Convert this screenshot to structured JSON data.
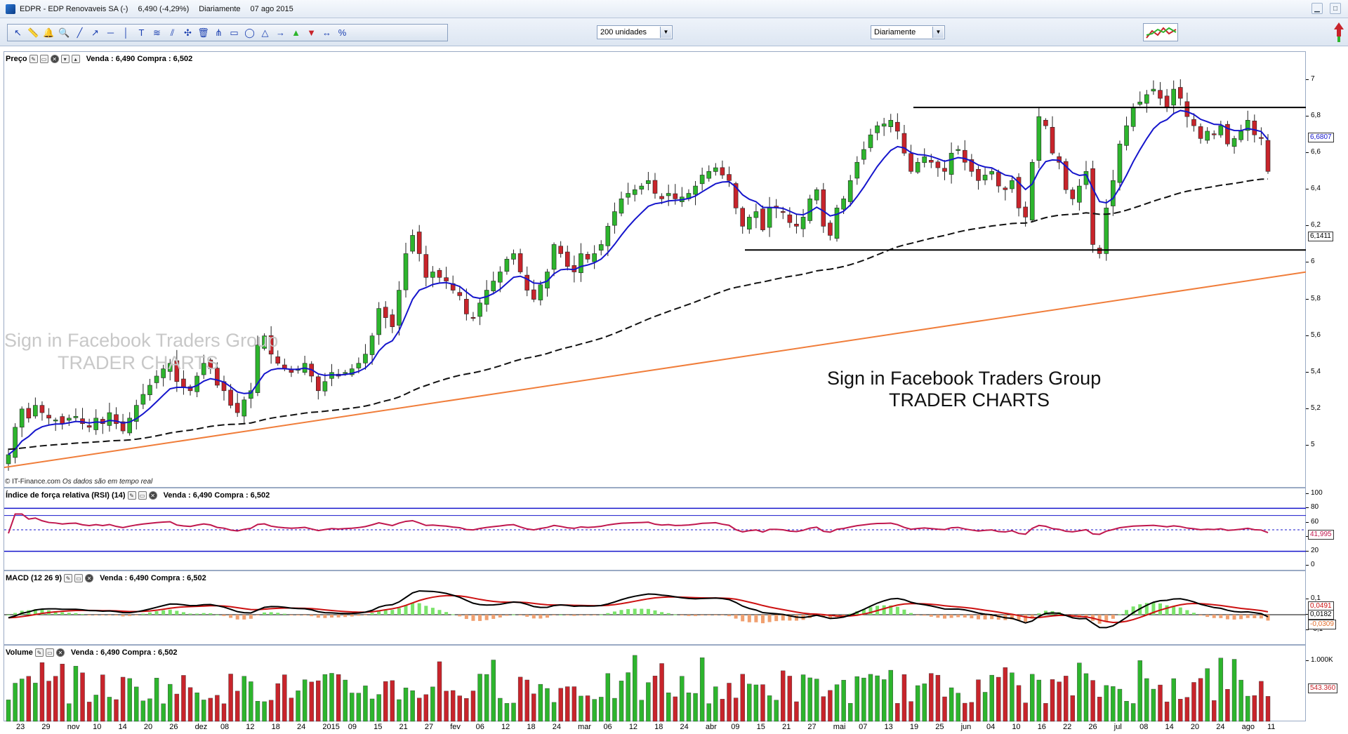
{
  "window": {
    "title_symbol": "EDPR - EDP Renovaveis SA (-)",
    "title_quote": "6,490 (-4,29%)",
    "title_period": "Diariamente",
    "title_date": "07 ago 2015"
  },
  "toolbar": {
    "units_select": "200 unidades",
    "period_select": "Diariamente",
    "tool_icons": [
      "cursor-icon",
      "ruler-icon",
      "bell-icon",
      "zoom-icon",
      "trendline-icon",
      "ray-icon",
      "horizontal-line-icon",
      "vertical-line-icon",
      "text-icon",
      "fib-icon",
      "channel-icon",
      "magnet-icon",
      "trash-icon",
      "pitchfork-icon",
      "rectangle-icon",
      "ellipse-icon",
      "triangle-icon",
      "arrow-icon",
      "up-arrow-icon",
      "down-arrow-icon",
      "range-icon",
      "percent-icon"
    ]
  },
  "panes": {
    "price": {
      "name": "Preço",
      "quote": "Venda : 6,490 Compra : 6,502"
    },
    "rsi": {
      "name": "Índice de força relativa (RSI) (14)",
      "quote": "Venda : 6,490 Compra : 6,502"
    },
    "macd": {
      "name": "MACD (12 26 9)",
      "quote": "Venda : 6,490 Compra : 6,502"
    },
    "volume": {
      "name": "Volume",
      "quote": "Venda : 6,490 Compra : 6,502"
    }
  },
  "credit": {
    "source": "© IT-Finance.com",
    "note": "Os dados são em tempo real"
  },
  "watermark": {
    "line1": "Sign in Facebook Traders Group",
    "line2": "TRADER CHARTS"
  },
  "colors": {
    "up": "#2db52d",
    "down": "#c8242b",
    "ema": "#1515cc",
    "sma": "#111111",
    "trend": "#f07d3a",
    "rsi": "#c0174e",
    "macd_signal": "#cc1111",
    "macd_line": "#000000"
  },
  "chart_data": [
    {
      "type": "candlestick",
      "symbol": "EDPR",
      "period": "daily",
      "ylim": [
        4.85,
        7.1
      ],
      "yticks": [
        "5",
        "5,2",
        "5,4",
        "5,6",
        "5,8",
        "6",
        "6,2",
        "6,4",
        "6,6",
        "6,8",
        "7"
      ],
      "last_ema_label": "6,6807",
      "last_sma_label": "6,1411",
      "x_ticks": [
        "23",
        "29",
        "nov",
        "10",
        "14",
        "20",
        "26",
        "dez",
        "08",
        "12",
        "18",
        "24",
        "2015",
        "09",
        "15",
        "21",
        "27",
        "fev",
        "06",
        "12",
        "18",
        "24",
        "mar",
        "06",
        "12",
        "18",
        "24",
        "abr",
        "09",
        "15",
        "21",
        "27",
        "mai",
        "07",
        "13",
        "19",
        "25",
        "jun",
        "04",
        "10",
        "16",
        "22",
        "26",
        "jul",
        "08",
        "14",
        "20",
        "24",
        "ago",
        "11"
      ],
      "closes": [
        4.95,
        5.1,
        5.2,
        5.15,
        5.22,
        5.18,
        5.15,
        5.14,
        5.12,
        5.15,
        5.16,
        5.12,
        5.1,
        5.15,
        5.12,
        5.18,
        5.12,
        5.08,
        5.15,
        5.22,
        5.28,
        5.33,
        5.38,
        5.42,
        5.45,
        5.35,
        5.32,
        5.3,
        5.38,
        5.45,
        5.42,
        5.33,
        5.3,
        5.22,
        5.18,
        5.25,
        5.3,
        5.55,
        5.6,
        5.5,
        5.45,
        5.42,
        5.4,
        5.42,
        5.45,
        5.38,
        5.3,
        5.35,
        5.4,
        5.38,
        5.4,
        5.42,
        5.45,
        5.5,
        5.6,
        5.75,
        5.7,
        5.65,
        5.85,
        6.05,
        6.15,
        6.05,
        5.92,
        5.95,
        5.92,
        5.9,
        5.85,
        5.82,
        5.72,
        5.7,
        5.78,
        5.85,
        5.9,
        5.95,
        6.02,
        6.05,
        5.95,
        5.85,
        5.8,
        5.88,
        5.95,
        6.1,
        6.05,
        5.98,
        5.95,
        6.05,
        6.02,
        6.05,
        6.1,
        6.2,
        6.28,
        6.35,
        6.38,
        6.4,
        6.42,
        6.45,
        6.38,
        6.35,
        6.38,
        6.35,
        6.36,
        6.38,
        6.42,
        6.48,
        6.5,
        6.52,
        6.48,
        6.45,
        6.3,
        6.2,
        6.25,
        6.28,
        6.18,
        6.3,
        6.3,
        6.28,
        6.22,
        6.2,
        6.25,
        6.35,
        6.4,
        6.2,
        6.15,
        6.3,
        6.35,
        6.45,
        6.55,
        6.62,
        6.7,
        6.75,
        6.76,
        6.78,
        6.72,
        6.6,
        6.5,
        6.55,
        6.58,
        6.55,
        6.52,
        6.5,
        6.6,
        6.62,
        6.55,
        6.5,
        6.45,
        6.48,
        6.5,
        6.42,
        6.4,
        6.45,
        6.3,
        6.25,
        6.55,
        6.8,
        6.75,
        6.6,
        6.55,
        6.4,
        6.35,
        6.42,
        6.5,
        6.1,
        6.05,
        6.3,
        6.45,
        6.65,
        6.75,
        6.85,
        6.88,
        6.92,
        6.95,
        6.9,
        6.85,
        6.95,
        6.9,
        6.8,
        6.75,
        6.68,
        6.72,
        6.7,
        6.75,
        6.65,
        6.68,
        6.72,
        6.78,
        6.7,
        6.68,
        6.5
      ],
      "overlays": [
        {
          "name": "EMA",
          "value_label": "6,6807"
        },
        {
          "name": "SMA",
          "value_label": "6,1411"
        },
        {
          "name": "Trendline"
        },
        {
          "name": "Resistance",
          "y": 6.85
        },
        {
          "name": "Support",
          "y": 6.07
        }
      ]
    },
    {
      "type": "line",
      "name": "RSI (14)",
      "ylim": [
        0,
        100
      ],
      "yticks": [
        "0",
        "20",
        "40",
        "60",
        "80",
        "100"
      ],
      "levels": [
        20,
        50,
        70,
        80
      ],
      "last_label": "41,995"
    },
    {
      "type": "line+bar",
      "name": "MACD (12 26 9)",
      "yticks": [
        "0,1",
        "0",
        "-0,1"
      ],
      "labels": [
        "0,0491",
        "0,0182",
        "-0,0309"
      ]
    },
    {
      "type": "bar",
      "name": "Volume",
      "yticks": [
        "1.000K"
      ],
      "last_label": "543.360"
    }
  ]
}
